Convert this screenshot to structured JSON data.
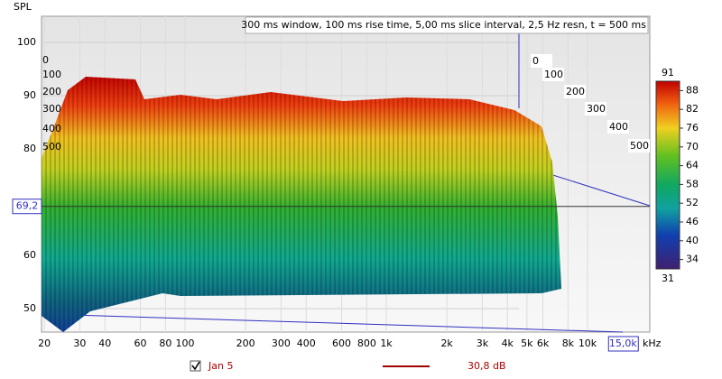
{
  "header": "300 ms window, 100 ms rise time, 5,00 ms slice interval, 2,5 Hz resn, t = 500 ms",
  "y_axis": {
    "label": "SPL",
    "ticks": [
      100,
      90,
      80,
      60,
      50
    ]
  },
  "x_axis": {
    "unit": "kHz",
    "ticks": [
      20,
      30,
      40,
      60,
      80,
      100,
      200,
      300,
      400,
      600,
      800,
      {
        "value": 1000,
        "label": "1k"
      },
      {
        "value": 2000,
        "label": "2k"
      },
      {
        "value": 3000,
        "label": "3k"
      },
      {
        "value": 4000,
        "label": "4k"
      },
      {
        "value": 5000,
        "label": "5k"
      },
      {
        "value": 6000,
        "label": "6k"
      },
      {
        "value": 8000,
        "label": "8k"
      },
      {
        "value": 10000,
        "label": "10k"
      }
    ]
  },
  "cursor": {
    "y": {
      "value": 69.2,
      "label": "69,2"
    },
    "x": {
      "value": 15000,
      "label": "15,0k"
    }
  },
  "color_scale": {
    "max": 91,
    "min": 31,
    "ticks": [
      88,
      82,
      76,
      70,
      64,
      58,
      52,
      46,
      40,
      34
    ]
  },
  "time_labels": {
    "left": [
      0,
      100,
      200,
      300,
      400,
      500
    ],
    "right": [
      0,
      100,
      200,
      300,
      400,
      500
    ]
  },
  "legend": {
    "name": "Jan 5",
    "value": "30,8 dB"
  }
}
